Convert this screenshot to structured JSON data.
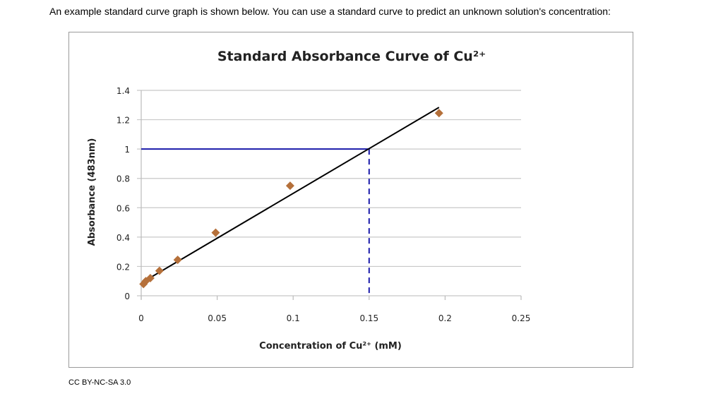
{
  "intro_text": "An example standard curve graph is shown below.  You can use a standard curve to predict an unknown solution's concentration:",
  "license": "CC BY-NC-SA 3.0",
  "chart_data": {
    "type": "scatter",
    "title": "Standard Absorbance Curve of  Cu²⁺",
    "xlabel": "Concentration of Cu²⁺ (mM)",
    "ylabel": "Absorbance (483nm)",
    "xlim": [
      0,
      0.25
    ],
    "ylim": [
      0,
      1.4
    ],
    "xticks": [
      "0",
      "0.05",
      "0.1",
      "0.15",
      "0.2",
      "0.25"
    ],
    "yticks": [
      "0",
      "0.2",
      "0.4",
      "0.6",
      "0.8",
      "1",
      "1.2",
      "1.4"
    ],
    "grid": "horizontal",
    "legend": "none",
    "points": {
      "x": [
        0.0015,
        0.003,
        0.006,
        0.012,
        0.024,
        0.049,
        0.098,
        0.196
      ],
      "y": [
        0.08,
        0.1,
        0.12,
        0.17,
        0.245,
        0.43,
        0.75,
        1.245
      ],
      "color": "#b5703a",
      "marker": "diamond"
    },
    "trendline": {
      "x": [
        0,
        0.196
      ],
      "y": [
        0.087,
        1.284
      ],
      "color": "#000000"
    },
    "annotation": {
      "x": 0.15,
      "y": 1.0,
      "color": "#1a1aaa",
      "horizontal": "solid",
      "vertical": "dashed"
    }
  }
}
